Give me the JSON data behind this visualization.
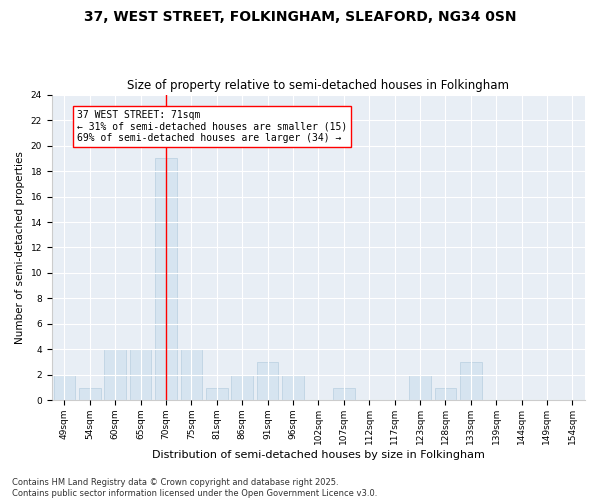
{
  "title": "37, WEST STREET, FOLKINGHAM, SLEAFORD, NG34 0SN",
  "subtitle": "Size of property relative to semi-detached houses in Folkingham",
  "xlabel": "Distribution of semi-detached houses by size in Folkingham",
  "ylabel": "Number of semi-detached properties",
  "bar_color": "#d6e4f0",
  "bar_edgecolor": "#b8cfe0",
  "vline_color": "red",
  "vline_pos": 4,
  "categories": [
    "49sqm",
    "54sqm",
    "60sqm",
    "65sqm",
    "70sqm",
    "75sqm",
    "81sqm",
    "86sqm",
    "91sqm",
    "96sqm",
    "102sqm",
    "107sqm",
    "112sqm",
    "117sqm",
    "123sqm",
    "128sqm",
    "133sqm",
    "139sqm",
    "144sqm",
    "149sqm",
    "154sqm"
  ],
  "values": [
    2,
    1,
    4,
    4,
    19,
    4,
    1,
    2,
    3,
    2,
    0,
    1,
    0,
    0,
    2,
    1,
    3,
    0,
    0,
    0,
    0
  ],
  "ylim": [
    0,
    24
  ],
  "yticks": [
    0,
    2,
    4,
    6,
    8,
    10,
    12,
    14,
    16,
    18,
    20,
    22,
    24
  ],
  "annotation_title": "37 WEST STREET: 71sqm",
  "annotation_line1": "← 31% of semi-detached houses are smaller (15)",
  "annotation_line2": "69% of semi-detached houses are larger (34) →",
  "annotation_box_color": "white",
  "annotation_box_edgecolor": "red",
  "footer": "Contains HM Land Registry data © Crown copyright and database right 2025.\nContains public sector information licensed under the Open Government Licence v3.0.",
  "bg_color": "#ffffff",
  "plot_bg_color": "#e8eef5",
  "grid_color": "#ffffff",
  "title_fontsize": 10,
  "subtitle_fontsize": 8.5,
  "xlabel_fontsize": 8,
  "ylabel_fontsize": 7.5,
  "tick_fontsize": 6.5,
  "footer_fontsize": 6,
  "annotation_fontsize": 7
}
